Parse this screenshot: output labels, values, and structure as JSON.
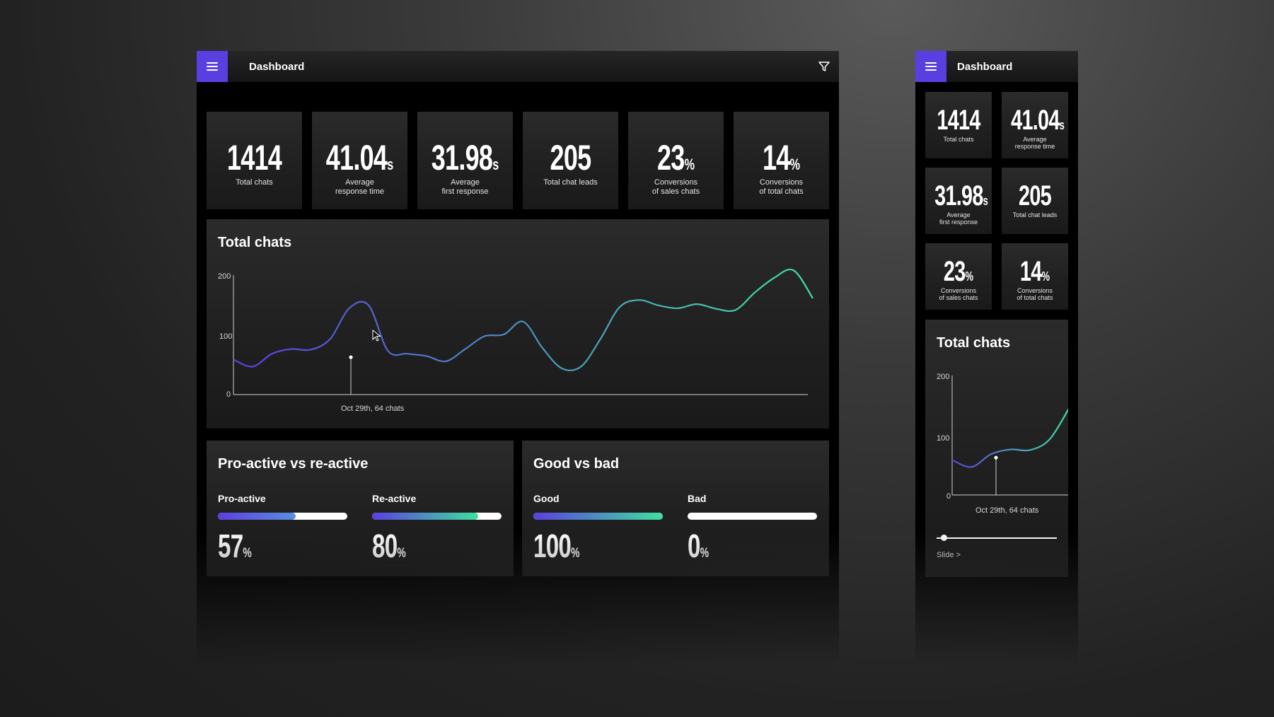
{
  "desktop": {
    "header": {
      "title": "Dashboard",
      "menu_icon": "hamburger-icon",
      "filter_icon": "filter-icon"
    },
    "stats": [
      {
        "value": "1414",
        "unit": "",
        "label": "Total chats"
      },
      {
        "value": "41.04",
        "unit": "s",
        "label": "Average\nresponse time"
      },
      {
        "value": "31.98",
        "unit": "s",
        "label": "Average\nfirst response"
      },
      {
        "value": "205",
        "unit": "",
        "label": "Total chat leads"
      },
      {
        "value": "23",
        "unit": "%",
        "label": "Conversions\nof sales chats"
      },
      {
        "value": "14",
        "unit": "%",
        "label": "Conversions\nof total chats"
      }
    ],
    "chart": {
      "title": "Total chats",
      "y_ticks": [
        "200",
        "100",
        "0"
      ],
      "caption": "Oct 29th, 64 chats"
    },
    "proactive": {
      "title": "Pro-active vs re-active",
      "items": [
        {
          "label": "Pro-active",
          "value": "57",
          "unit": "%",
          "fraction": 0.6
        },
        {
          "label": "Re-active",
          "value": "80",
          "unit": "%",
          "fraction": 0.82
        }
      ]
    },
    "goodbad": {
      "title": "Good vs bad",
      "items": [
        {
          "label": "Good",
          "value": "100",
          "unit": "%",
          "fraction": 1.0
        },
        {
          "label": "Bad",
          "value": "0",
          "unit": "%",
          "fraction": 0.0
        }
      ]
    }
  },
  "mobile": {
    "header": {
      "title": "Dashboard",
      "menu_icon": "hamburger-icon"
    },
    "stats": [
      {
        "value": "1414",
        "unit": "",
        "label": "Total chats"
      },
      {
        "value": "41.04",
        "unit": "s",
        "label": "Average\nresponse time"
      },
      {
        "value": "31.98",
        "unit": "s",
        "label": "Average\nfirst response"
      },
      {
        "value": "205",
        "unit": "",
        "label": "Total chat leads"
      },
      {
        "value": "23",
        "unit": "%",
        "label": "Conversions\nof sales chats"
      },
      {
        "value": "14",
        "unit": "%",
        "label": "Conversions\nof total chats"
      }
    ],
    "chart": {
      "title": "Total chats",
      "y_ticks": [
        "200",
        "100",
        "0"
      ],
      "caption": "Oct 29th, 64 chats",
      "slide_label": "Slide >"
    }
  },
  "colors": {
    "accent": "#5a3fe0",
    "gradient_start": "#5b3fe0",
    "gradient_end": "#3fe0a0"
  },
  "chart_data": {
    "type": "line",
    "title": "Total chats",
    "ylim": [
      0,
      200
    ],
    "y_ticks": [
      0,
      100,
      200
    ],
    "highlight": {
      "label": "Oct 29th, 64 chats",
      "value": 64
    },
    "series": [
      {
        "values": [
          60,
          48,
          70,
          78,
          77,
          95,
          148,
          153,
          75,
          70,
          66,
          57,
          78,
          100,
          103,
          125,
          80,
          45,
          48,
          95,
          150,
          162,
          153,
          148,
          155,
          147,
          145,
          175,
          200,
          213,
          165
        ]
      }
    ]
  }
}
